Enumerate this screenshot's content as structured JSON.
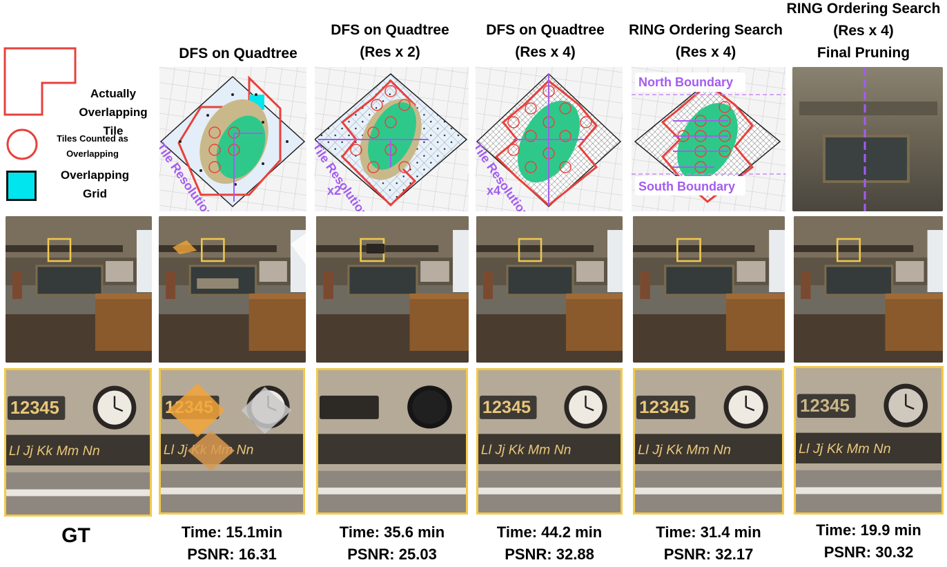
{
  "legend": {
    "overlapping_tile": "Actually\nOverlapping Tile",
    "tiles_counted": "Tiles Counted as\nOverlapping",
    "overlapping_grid": "Overlapping\nGrid"
  },
  "columns": [
    {
      "title": "",
      "time": "",
      "psnr": "",
      "label": "GT"
    },
    {
      "title": "DFS on Quadtree",
      "time": "Time: 15.1min",
      "psnr": "PSNR: 16.31"
    },
    {
      "title": "DFS on Quadtree\n(Res x 2)",
      "time": "Time: 35.6 min",
      "psnr": "PSNR: 25.03"
    },
    {
      "title": "DFS on Quadtree\n(Res x 4)",
      "time": "Time: 44.2 min",
      "psnr": "PSNR: 32.88"
    },
    {
      "title": "RING Ordering Search\n(Res x 4)",
      "time": "Time: 31.4 min",
      "psnr": "PSNR: 32.17"
    },
    {
      "title": "RING Ordering Search\n(Res x 4)\nFinal Pruning",
      "time": "Time: 19.9 min",
      "psnr": "PSNR: 30.32"
    }
  ],
  "diagram_labels": {
    "tile_resolution": "Tile Resolution",
    "x2": "x2",
    "x4": "x4",
    "north_boundary": "North Boundary",
    "south_boundary": "South Boundary"
  },
  "zoom_text": {
    "number_plate": "12345",
    "alphabet": "Ll Jj Kk Mm Nn"
  },
  "colors": {
    "tile_red": "#e8413c",
    "grid_cyan": "#00e5ee",
    "ellipse_green": "#2ec98a",
    "label_purple": "#a35cf0",
    "highlight_yellow": "#f2c94c"
  }
}
